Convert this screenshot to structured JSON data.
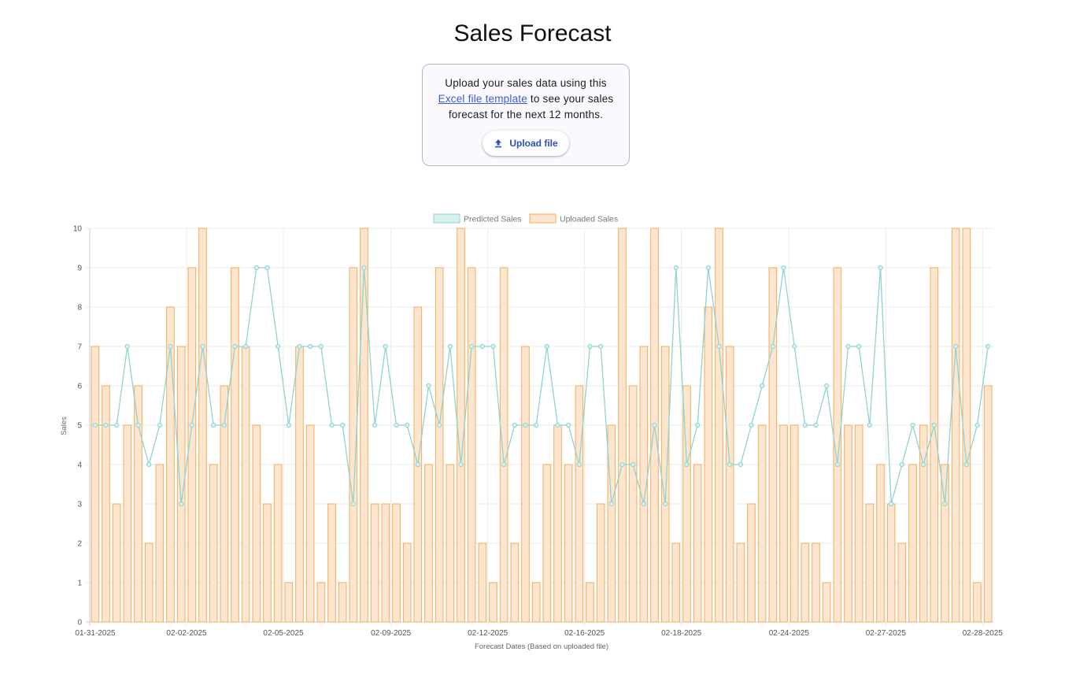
{
  "page": {
    "title": "Sales Forecast"
  },
  "upload": {
    "text_before": "Upload your sales data using this ",
    "link_text": "Excel file template",
    "text_after": " to see your sales forecast for the next 12 months.",
    "button_label": "Upload file",
    "button_icon": "upload-icon"
  },
  "colors": {
    "predicted_line": "#8fd4d0",
    "predicted_fill": "#d7f1ef",
    "uploaded_border": "#f4ab5c",
    "uploaded_fill": "#fde6cf",
    "grid": "#ebebeb"
  },
  "chart_data": {
    "type": "bar",
    "title": "",
    "xlabel": "Forecast Dates (Based on uploaded file)",
    "ylabel": "Sales",
    "ylim": [
      0,
      10
    ],
    "yticks": [
      0,
      1,
      2,
      3,
      4,
      5,
      6,
      7,
      8,
      9,
      10
    ],
    "grid": true,
    "legend": {
      "position": "top-center",
      "entries": [
        "Predicted Sales",
        "Uploaded Sales"
      ]
    },
    "x_tick_labels": [
      "01-31-2025",
      "02-02-2025",
      "02-05-2025",
      "02-09-2025",
      "02-12-2025",
      "02-16-2025",
      "02-18-2025",
      "02-24-2025",
      "02-27-2025",
      "02-28-2025"
    ],
    "series": [
      {
        "name": "Uploaded Sales",
        "type": "bar",
        "values": [
          7,
          6,
          3,
          5,
          6,
          2,
          4,
          8,
          7,
          9,
          10,
          4,
          6,
          9,
          7,
          5,
          3,
          4,
          1,
          7,
          5,
          1,
          3,
          1,
          9,
          10,
          3,
          3,
          3,
          2,
          8,
          4,
          9,
          4,
          10,
          9,
          2,
          1,
          9,
          2,
          7,
          1,
          4,
          5,
          4,
          6,
          1,
          3,
          5,
          10,
          6,
          7,
          10,
          7,
          2,
          6,
          4,
          8,
          10,
          7,
          2,
          3,
          5,
          9,
          5,
          5,
          2,
          2,
          1,
          9,
          5,
          5,
          3,
          4,
          3,
          2,
          4,
          5,
          9,
          4,
          10,
          10,
          1,
          6
        ]
      },
      {
        "name": "Predicted Sales",
        "type": "line",
        "values": [
          5,
          5,
          5,
          7,
          5,
          4,
          5,
          7,
          3,
          5,
          7,
          5,
          5,
          7,
          7,
          9,
          9,
          7,
          5,
          7,
          7,
          7,
          5,
          5,
          3,
          9,
          5,
          7,
          5,
          5,
          4,
          6,
          5,
          7,
          4,
          7,
          7,
          7,
          4,
          5,
          5,
          5,
          7,
          5,
          5,
          4,
          7,
          7,
          3,
          4,
          4,
          3,
          5,
          3,
          9,
          4,
          5,
          9,
          7,
          4,
          4,
          5,
          6,
          7,
          9,
          7,
          5,
          5,
          6,
          4,
          7,
          7,
          5,
          9,
          3,
          4,
          5,
          4,
          5,
          3,
          7,
          4,
          5,
          7
        ]
      }
    ]
  }
}
